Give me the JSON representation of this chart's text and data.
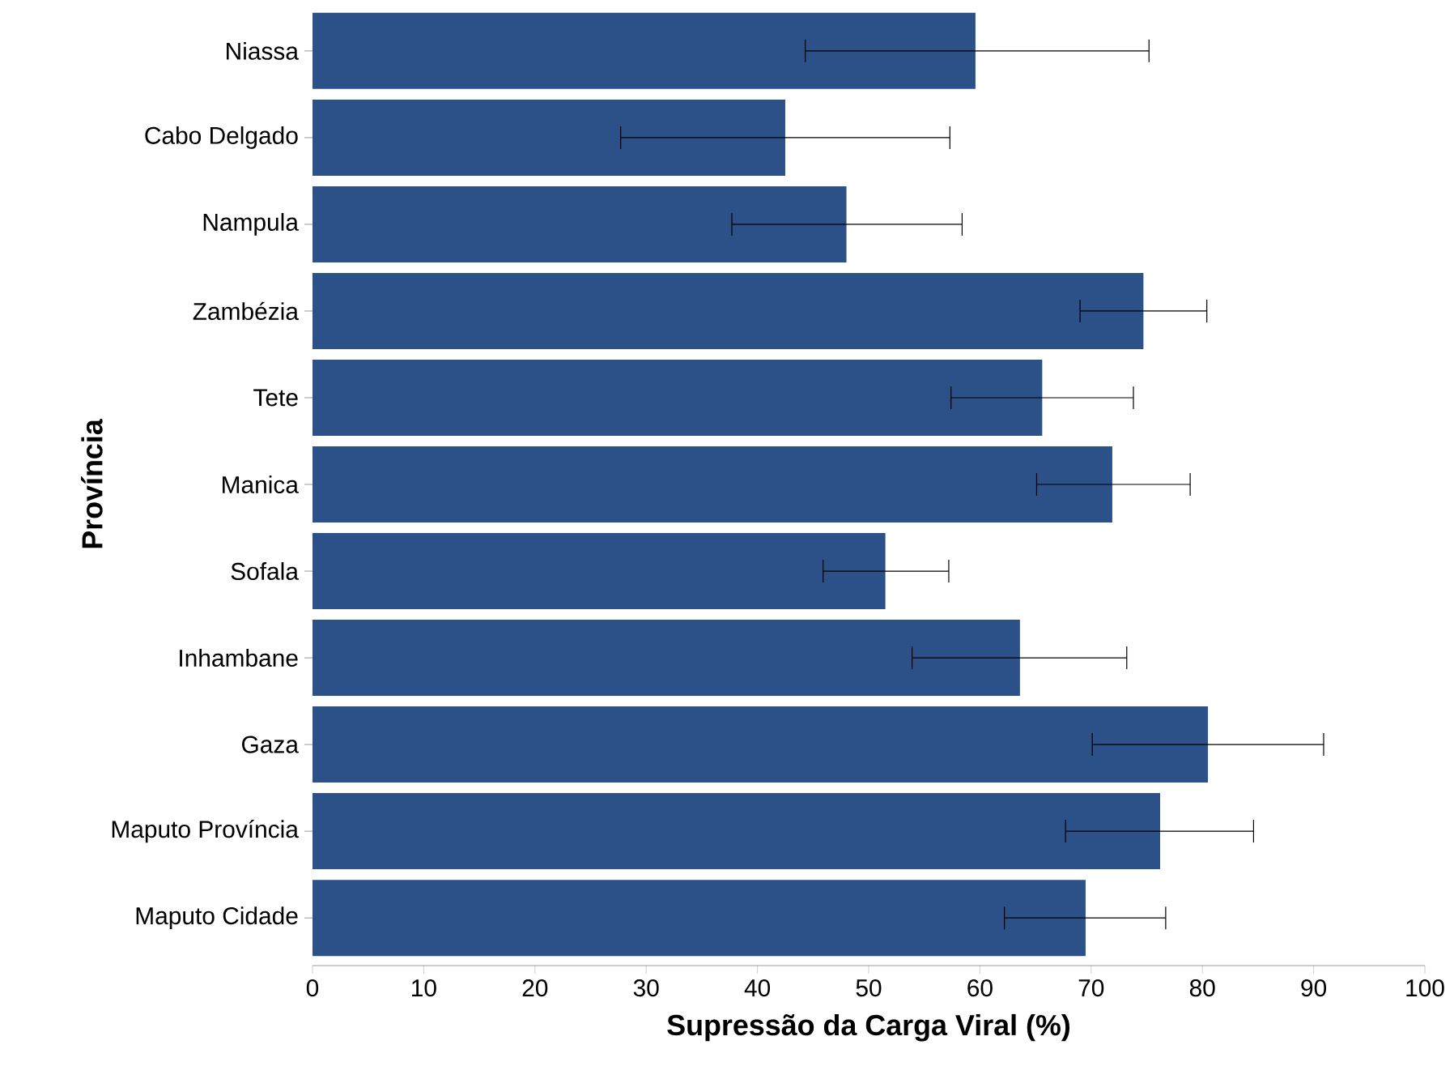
{
  "chart_data": {
    "type": "bar",
    "orientation": "horizontal",
    "xlabel": "Supressão da Carga Viral (%)",
    "ylabel": "Província",
    "categories": [
      "Niassa",
      "Cabo Delgado",
      "Nampula",
      "Zambézia",
      "Tete",
      "Manica",
      "Sofala",
      "Inhambane",
      "Gaza",
      "Maputo Província",
      "Maputo Cidade"
    ],
    "values": [
      59.6,
      42.5,
      48.0,
      74.7,
      65.6,
      71.9,
      51.5,
      63.6,
      80.5,
      76.2,
      69.5
    ],
    "errors": [
      [
        44.3,
        75.2
      ],
      [
        27.7,
        57.3
      ],
      [
        37.7,
        58.4
      ],
      [
        69.0,
        80.4
      ],
      [
        57.4,
        73.8
      ],
      [
        65.1,
        78.9
      ],
      [
        45.9,
        57.2
      ],
      [
        53.9,
        73.2
      ],
      [
        70.1,
        90.9
      ],
      [
        67.7,
        84.6
      ],
      [
        62.2,
        76.7
      ]
    ],
    "color": "#2c5088",
    "xlim": [
      0,
      100
    ],
    "xticks": [
      0,
      10,
      20,
      30,
      40,
      50,
      60,
      70,
      80,
      90,
      100
    ],
    "grid": false
  }
}
